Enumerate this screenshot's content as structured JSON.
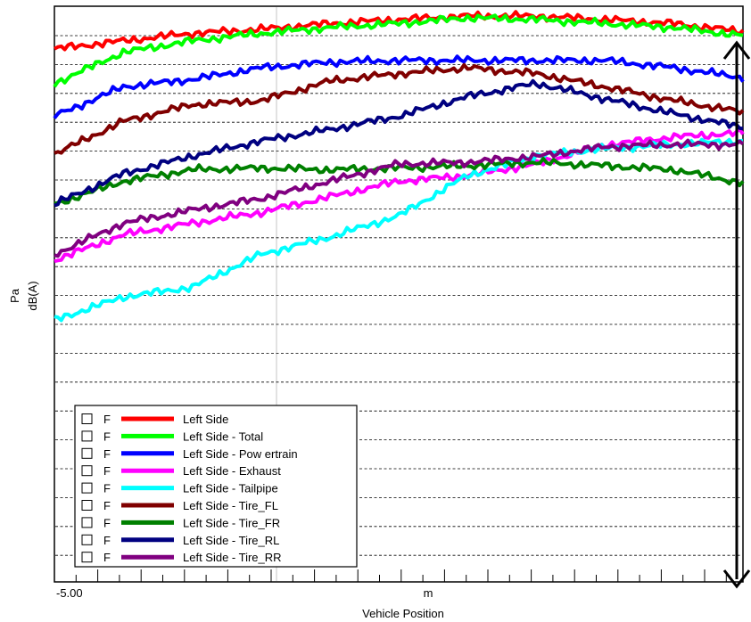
{
  "chart_data": {
    "type": "line",
    "title": "",
    "xlabel": "Vehicle Position",
    "xunit": "m",
    "ylabel_top": "Pa",
    "ylabel_bottom": "dB(A)",
    "x_tick_label": "-5.00",
    "xlim": [
      -5.0,
      100.0
    ],
    "ylim": [
      0,
      100
    ],
    "grid": "horizontal-dashed",
    "legend_position": "bottom-left",
    "legend_checkbox_label": "F",
    "x": [
      -5.0,
      5.5,
      16.0,
      26.5,
      37.0,
      47.5,
      58.0,
      68.5,
      79.0,
      89.5,
      100.0
    ],
    "series": [
      {
        "name": "Left Side",
        "color": "#ff0000",
        "values": [
          92.6,
          94.0,
          95.3,
          96.0,
          97.0,
          97.7,
          98.3,
          98.3,
          97.7,
          97.0,
          95.6
        ]
      },
      {
        "name": "Left Side - Total",
        "color": "#00ff00",
        "values": [
          86.6,
          92.0,
          94.0,
          95.3,
          96.3,
          97.0,
          98.0,
          97.7,
          97.0,
          96.3,
          94.9
        ]
      },
      {
        "name": "Left Side - Pow ertrain",
        "color": "#0000ff",
        "values": [
          80.9,
          86.0,
          87.3,
          89.3,
          90.3,
          90.6,
          90.6,
          90.6,
          90.6,
          89.3,
          87.6
        ]
      },
      {
        "name": "Left Side - Exhaust",
        "color": "#ff00ff",
        "values": [
          55.9,
          60.3,
          62.3,
          64.2,
          66.9,
          69.6,
          70.6,
          72.6,
          75.9,
          77.3,
          78.0
        ]
      },
      {
        "name": "Left Side - Tailpipe",
        "color": "#00ffff",
        "values": [
          45.5,
          49.5,
          51.2,
          56.9,
          59.9,
          63.6,
          70.6,
          74.0,
          75.3,
          76.0,
          76.6
        ]
      },
      {
        "name": "Left Side - Tire_FL",
        "color": "#800000",
        "values": [
          74.3,
          80.0,
          82.9,
          83.6,
          87.0,
          88.3,
          89.3,
          88.3,
          86.0,
          83.6,
          81.6
        ]
      },
      {
        "name": "Left Side - Tire_FR",
        "color": "#008000",
        "values": [
          65.6,
          69.6,
          71.6,
          71.9,
          71.6,
          71.9,
          72.3,
          72.9,
          72.3,
          71.6,
          69.3
        ]
      },
      {
        "name": "Left Side - Tire_RL",
        "color": "#000080",
        "values": [
          65.6,
          70.9,
          74.0,
          76.6,
          78.6,
          80.9,
          84.3,
          86.6,
          83.9,
          81.3,
          79.0
        ]
      },
      {
        "name": "Left Side - Tire_RR",
        "color": "#800080",
        "values": [
          56.9,
          62.3,
          64.6,
          66.6,
          69.6,
          72.6,
          72.9,
          73.9,
          75.6,
          76.0,
          76.0
        ]
      }
    ]
  }
}
